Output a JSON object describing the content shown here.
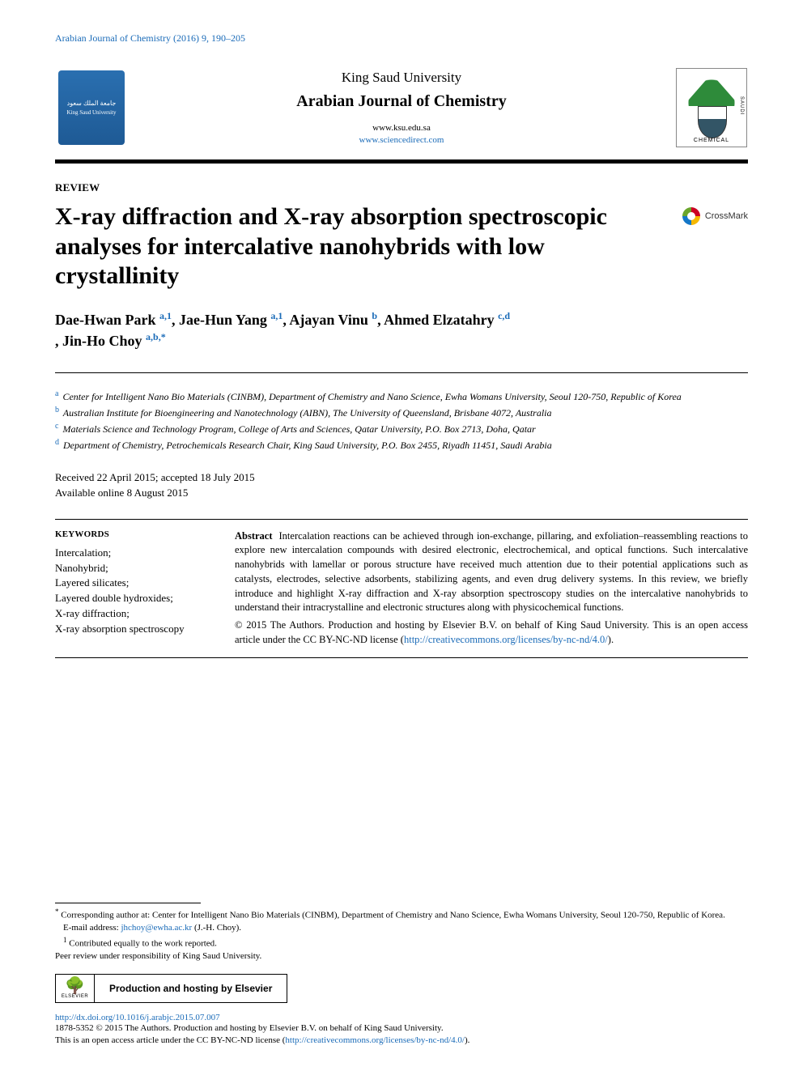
{
  "running_head": "Arabian Journal of Chemistry (2016) 9, 190–205",
  "masthead": {
    "university": "King Saud University",
    "journal": "Arabian Journal of Chemistry",
    "url1": "www.ksu.edu.sa",
    "url2": "www.sciencedirect.com",
    "ksu_logo_ar": "جامعة الملك سعود",
    "ksu_logo_en": "King Saud University",
    "soc_label": "SAUDI"
  },
  "article_type": "REVIEW",
  "title": "X-ray diffraction and X-ray absorption spectroscopic analyses for intercalative nanohybrids with low crystallinity",
  "crossmark": "CrossMark",
  "authors_html": [
    {
      "name": "Dae-Hwan Park ",
      "aff": "a,1"
    },
    {
      "name": ", Jae-Hun Yang ",
      "aff": "a,1"
    },
    {
      "name": ", Ajayan Vinu ",
      "aff": "b"
    },
    {
      "name": ", Ahmed Elzatahry ",
      "aff": "c,d"
    },
    {
      "name": ", Jin-Ho Choy ",
      "aff": "a,b,*"
    }
  ],
  "affiliations": [
    {
      "lbl": "a",
      "text": "Center for Intelligent Nano Bio Materials (CINBM), Department of Chemistry and Nano Science, Ewha Womans University, Seoul 120-750, Republic of Korea"
    },
    {
      "lbl": "b",
      "text": "Australian Institute for Bioengineering and Nanotechnology (AIBN), The University of Queensland, Brisbane 4072, Australia"
    },
    {
      "lbl": "c",
      "text": "Materials Science and Technology Program, College of Arts and Sciences, Qatar University, P.O. Box 2713, Doha, Qatar"
    },
    {
      "lbl": "d",
      "text": "Department of Chemistry, Petrochemicals Research Chair, King Saud University, P.O. Box 2455, Riyadh 11451, Saudi Arabia"
    }
  ],
  "dates": {
    "received_accepted": "Received 22 April 2015; accepted 18 July 2015",
    "online": "Available online 8 August 2015"
  },
  "keywords": {
    "heading": "KEYWORDS",
    "items": [
      "Intercalation;",
      "Nanohybrid;",
      "Layered silicates;",
      "Layered double hydroxides;",
      "X-ray diffraction;",
      "X-ray absorption spectroscopy"
    ]
  },
  "abstract": {
    "label": "Abstract",
    "body": "Intercalation reactions can be achieved through ion-exchange, pillaring, and exfoliation–reassembling reactions to explore new intercalation compounds with desired electronic, electrochemical, and optical functions. Such intercalative nanohybrids with lamellar or porous structure have received much attention due to their potential applications such as catalysts, electrodes, selective adsorbents, stabilizing agents, and even drug delivery systems. In this review, we briefly introduce and highlight X-ray diffraction and X-ray absorption spectroscopy studies on the intercalative nanohybrids to understand their intracrystalline and electronic structures along with physicochemical functions.",
    "copyright_pre": "© 2015 The Authors. Production and hosting by Elsevier B.V. on behalf of King Saud University. This is an open access article under the CC BY-NC-ND license (",
    "cc_link": "http://creativecommons.org/licenses/by-nc-nd/4.0/",
    "copyright_post": ")."
  },
  "footnotes": {
    "corr_label": "*",
    "corr_text": " Corresponding author at: Center for Intelligent Nano Bio Materials (CINBM), Department of Chemistry and Nano Science, Ewha Womans University, Seoul 120-750, Republic of Korea.",
    "email_label": "E-mail address: ",
    "email": "jhchoy@ewha.ac.kr",
    "email_post": " (J.-H. Choy).",
    "eq_label": "1",
    "eq_text": " Contributed equally to the work reported.",
    "peer": "Peer review under responsibility of King Saud University."
  },
  "host_box": {
    "elsevier": "ELSEVIER",
    "label": "Production and hosting by Elsevier"
  },
  "doi": "http://dx.doi.org/10.1016/j.arabjc.2015.07.007",
  "issn_line_pre": "1878-5352 © 2015 The Authors. Production and hosting by Elsevier B.V. on behalf of King Saud University.",
  "issn_line2_pre": "This is an open access article under the CC BY-NC-ND license (",
  "issn_cc_link": "http://creativecommons.org/licenses/by-nc-nd/4.0/",
  "issn_line2_post": ")."
}
